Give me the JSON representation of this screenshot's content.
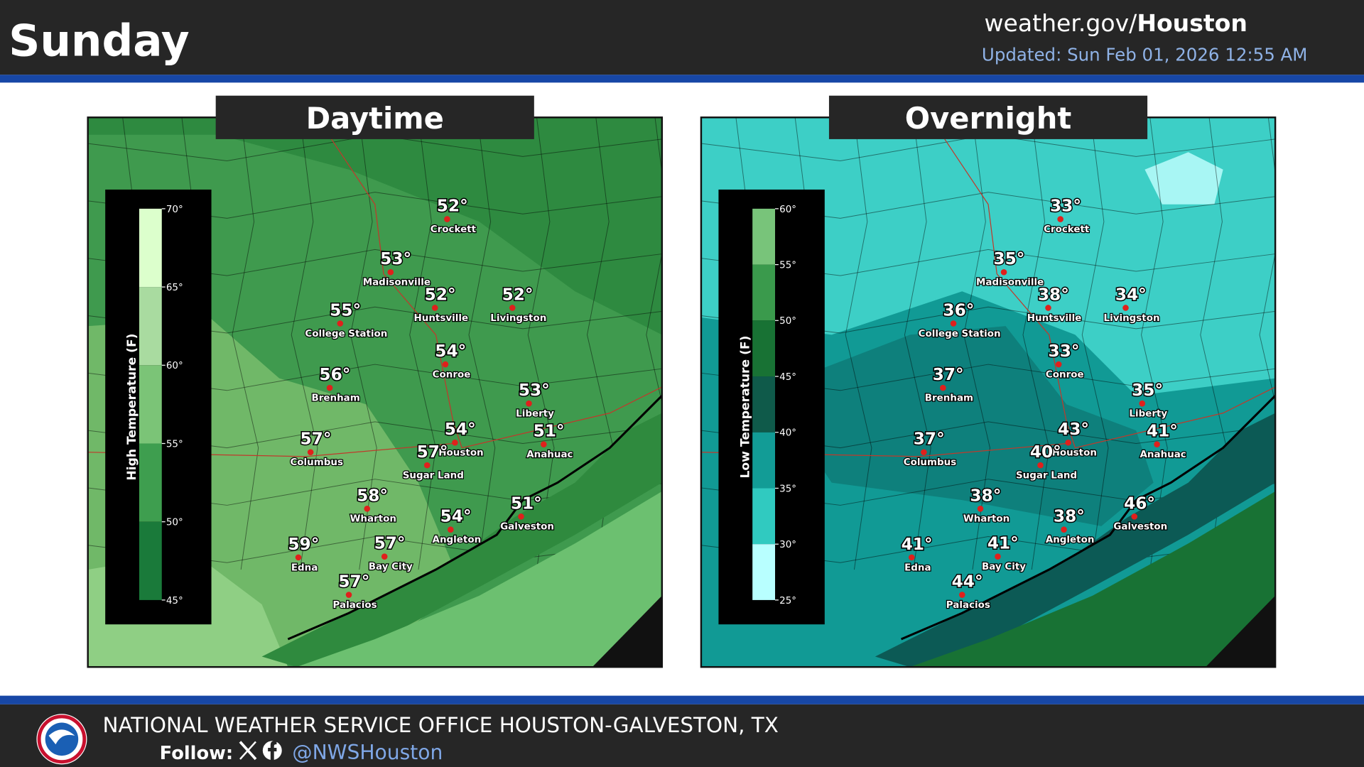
{
  "header": {
    "title": "Sunday",
    "site": {
      "domain": "weather.gov/",
      "office": "Houston"
    },
    "updated": "Updated: Sun Feb 01, 2026 12:55 AM"
  },
  "panels": [
    {
      "title": "Daytime",
      "legend": {
        "title": "High Temperature (F)",
        "ticks": [
          "70°",
          "65°",
          "60°",
          "55°",
          "50°",
          "45°"
        ]
      },
      "cities": [
        {
          "name": "Crockett",
          "temp": "52°"
        },
        {
          "name": "Madisonville",
          "temp": "53°"
        },
        {
          "name": "Huntsville",
          "temp": "52°"
        },
        {
          "name": "Livingston",
          "temp": "52°"
        },
        {
          "name": "College Station",
          "temp": "55°"
        },
        {
          "name": "Conroe",
          "temp": "54°"
        },
        {
          "name": "Brenham",
          "temp": "56°"
        },
        {
          "name": "Liberty",
          "temp": "53°"
        },
        {
          "name": "Anahuac",
          "temp": "51°"
        },
        {
          "name": "Houston",
          "temp": "54°"
        },
        {
          "name": "Columbus",
          "temp": "57°"
        },
        {
          "name": "Sugar Land",
          "temp": "57°"
        },
        {
          "name": "Wharton",
          "temp": "58°"
        },
        {
          "name": "Galveston",
          "temp": "51°"
        },
        {
          "name": "Angleton",
          "temp": "54°"
        },
        {
          "name": "Edna",
          "temp": "59°"
        },
        {
          "name": "Bay City",
          "temp": "57°"
        },
        {
          "name": "Palacios",
          "temp": "57°"
        }
      ]
    },
    {
      "title": "Overnight",
      "legend": {
        "title": "Low Temperature (F)",
        "ticks": [
          "60°",
          "55°",
          "50°",
          "45°",
          "40°",
          "35°",
          "30°",
          "25°"
        ]
      },
      "cities": [
        {
          "name": "Crockett",
          "temp": "33°"
        },
        {
          "name": "Madisonville",
          "temp": "35°"
        },
        {
          "name": "Huntsville",
          "temp": "38°"
        },
        {
          "name": "Livingston",
          "temp": "34°"
        },
        {
          "name": "College Station",
          "temp": "36°"
        },
        {
          "name": "Conroe",
          "temp": "33°"
        },
        {
          "name": "Brenham",
          "temp": "37°"
        },
        {
          "name": "Liberty",
          "temp": "35°"
        },
        {
          "name": "Anahuac",
          "temp": "41°"
        },
        {
          "name": "Houston",
          "temp": "43°"
        },
        {
          "name": "Columbus",
          "temp": "37°"
        },
        {
          "name": "Sugar Land",
          "temp": "40°"
        },
        {
          "name": "Wharton",
          "temp": "38°"
        },
        {
          "name": "Galveston",
          "temp": "46°"
        },
        {
          "name": "Angleton",
          "temp": "38°"
        },
        {
          "name": "Edna",
          "temp": "41°"
        },
        {
          "name": "Bay City",
          "temp": "41°"
        },
        {
          "name": "Palacios",
          "temp": "44°"
        }
      ]
    }
  ],
  "footer": {
    "office": "NATIONAL WEATHER SERVICE OFFICE HOUSTON-GALVESTON, TX",
    "follow": "Follow:",
    "handle": "@NWSHouston"
  }
}
